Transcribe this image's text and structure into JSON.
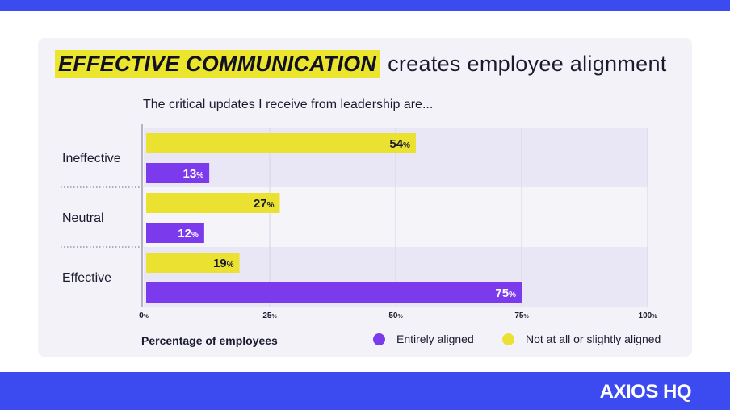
{
  "header": {
    "highlight": "EFFECTIVE COMMUNICATION",
    "rest": "creates employee alignment"
  },
  "brand": {
    "logo_text": "AXIOS HQ"
  },
  "colors": {
    "band": "#3b4bf0",
    "card": "#f2f2f8",
    "highlight": "#ece52e",
    "entirely_aligned": "#7c3aed",
    "not_aligned": "#ebe130"
  },
  "chart_data": {
    "type": "bar",
    "orientation": "horizontal",
    "title": "The critical updates I receive from leadership are...",
    "xlabel": "Percentage of employees",
    "ylabel": "",
    "xlim": [
      0,
      100
    ],
    "x_ticks": [
      "0%",
      "25%",
      "50%",
      "75%",
      "100%"
    ],
    "categories": [
      "Ineffective",
      "Neutral",
      "Effective"
    ],
    "series": [
      {
        "name": "Not at all or slightly aligned",
        "values": [
          54,
          27,
          19
        ],
        "labels": [
          "54%",
          "27%",
          "19%"
        ],
        "color": "#ebe130"
      },
      {
        "name": "Entirely aligned",
        "values": [
          13,
          12,
          75
        ],
        "labels": [
          "13%",
          "12%",
          "75%"
        ],
        "color": "#7c3aed"
      }
    ],
    "grid": true,
    "legend": [
      {
        "name": "Entirely aligned",
        "color": "#7c3aed"
      },
      {
        "name": "Not at all or slightly aligned",
        "color": "#ebe130"
      }
    ],
    "legend_position": "bottom-right"
  }
}
